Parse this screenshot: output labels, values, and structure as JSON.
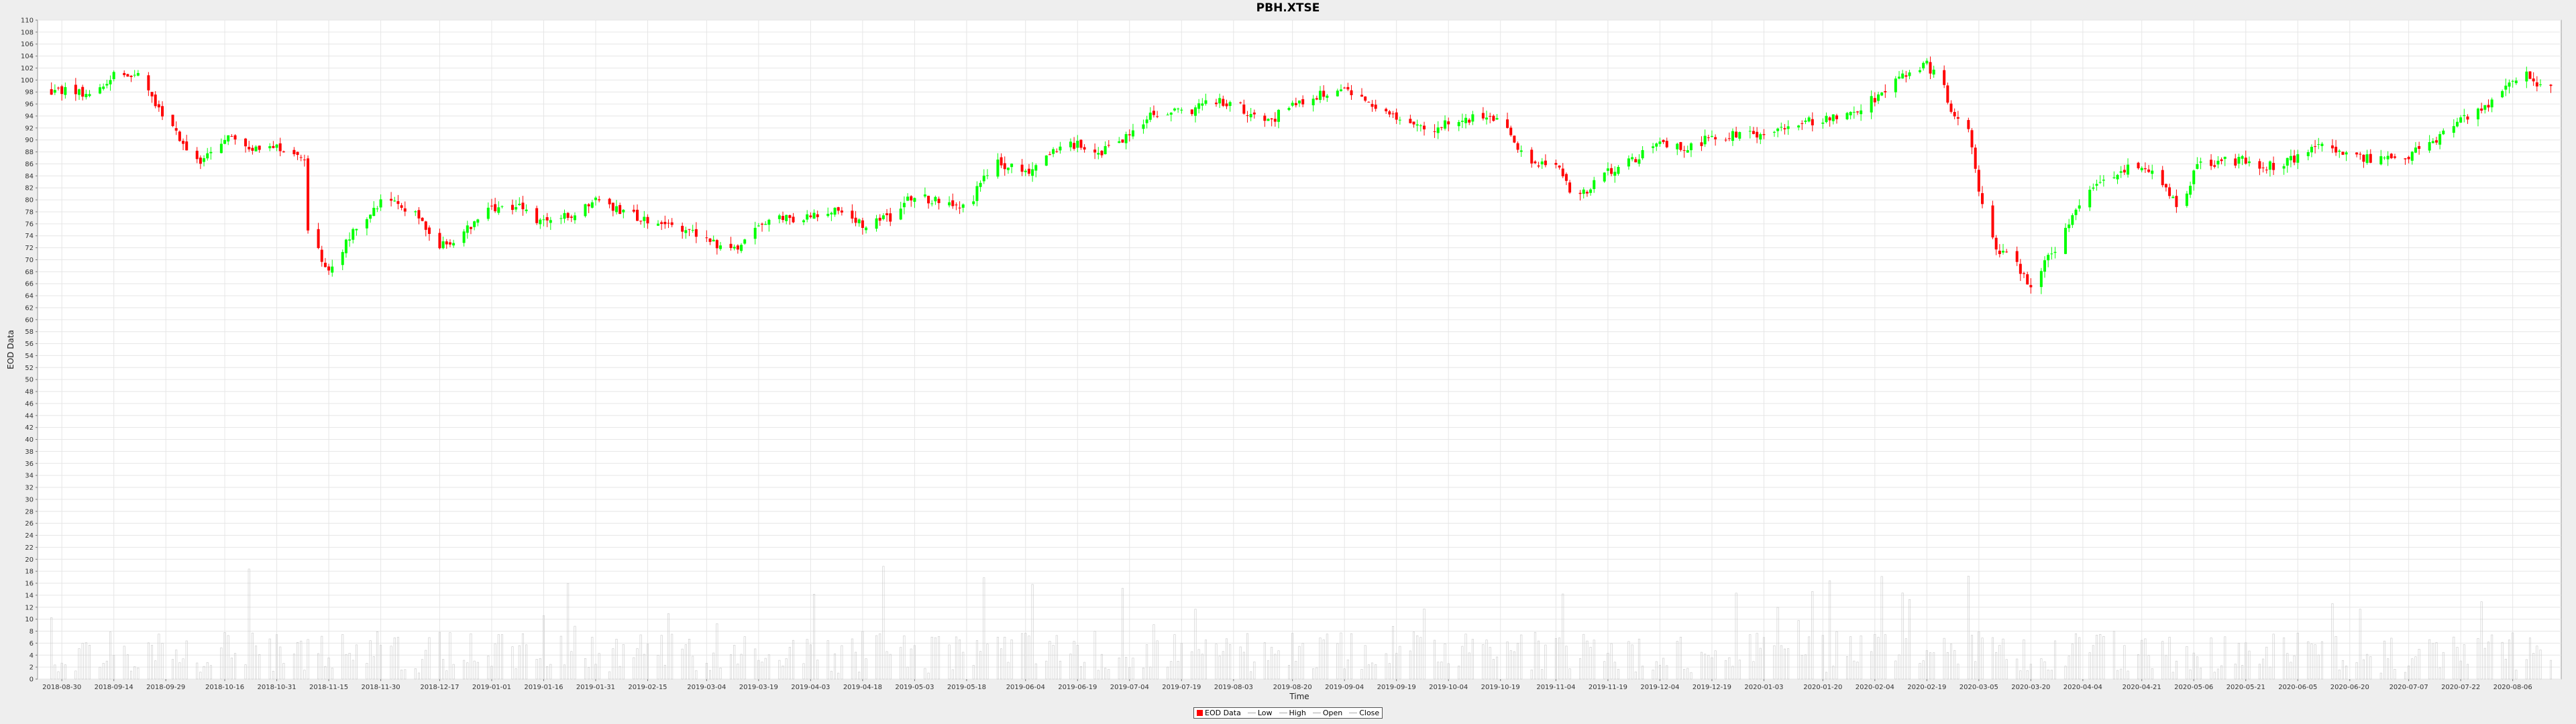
{
  "chart_data": {
    "type": "candlestick",
    "title": "PBH.XTSE",
    "xlabel": "Time",
    "ylabel": "EOD Data",
    "ylim": [
      0,
      110
    ],
    "ytick_step": 2,
    "grid": true,
    "legend_position": "bottom-center",
    "legend": [
      "EOD Data",
      "Low",
      "High",
      "Open",
      "Close"
    ],
    "colors": {
      "up": "#00ff00",
      "down": "#ff0000",
      "volume": "#c8c8c8",
      "grid": "#e6e6e6"
    },
    "x_ticks": [
      "2018-08-30",
      "2018-09-14",
      "2018-09-29",
      "2018-10-16",
      "2018-10-31",
      "2018-11-15",
      "2018-11-30",
      "2018-12-17",
      "2019-01-01",
      "2019-01-16",
      "2019-01-31",
      "2019-02-15",
      "2019-03-04",
      "2019-03-19",
      "2019-04-03",
      "2019-04-18",
      "2019-05-03",
      "2019-05-18",
      "2019-06-04",
      "2019-06-19",
      "2019-07-04",
      "2019-07-19",
      "2019-08-03",
      "2019-08-20",
      "2019-09-04",
      "2019-09-19",
      "2019-10-04",
      "2019-10-19",
      "2019-11-04",
      "2019-11-19",
      "2019-12-04",
      "2019-12-19",
      "2020-01-03",
      "2020-01-20",
      "2020-02-04",
      "2020-02-19",
      "2020-03-05",
      "2020-03-20",
      "2020-04-04",
      "2020-04-21",
      "2020-05-06",
      "2020-05-21",
      "2020-06-05",
      "2020-06-20",
      "2020-07-07",
      "2020-07-22",
      "2020-08-06"
    ],
    "price_series": [
      {
        "date": "2018-08-30",
        "close": 98.2
      },
      {
        "date": "2018-09-07",
        "close": 97.6
      },
      {
        "date": "2018-09-14",
        "close": 101.0
      },
      {
        "date": "2018-09-21",
        "close": 100.4
      },
      {
        "date": "2018-09-29",
        "close": 93.5
      },
      {
        "date": "2018-10-09",
        "close": 85.8
      },
      {
        "date": "2018-10-16",
        "close": 90.5
      },
      {
        "date": "2018-10-24",
        "close": 88.6
      },
      {
        "date": "2018-10-31",
        "close": 89.2
      },
      {
        "date": "2018-11-08",
        "close": 86.0
      },
      {
        "date": "2018-11-09",
        "close": 74.5
      },
      {
        "date": "2018-11-15",
        "close": 68.0
      },
      {
        "date": "2018-11-22",
        "close": 75.0
      },
      {
        "date": "2018-11-30",
        "close": 79.5
      },
      {
        "date": "2018-12-10",
        "close": 78.5
      },
      {
        "date": "2018-12-17",
        "close": 72.0
      },
      {
        "date": "2018-12-24",
        "close": 74.5
      },
      {
        "date": "2019-01-01",
        "close": 78.5
      },
      {
        "date": "2019-01-08",
        "close": 79.2
      },
      {
        "date": "2019-01-16",
        "close": 76.0
      },
      {
        "date": "2019-01-24",
        "close": 77.5
      },
      {
        "date": "2019-01-31",
        "close": 79.8
      },
      {
        "date": "2019-02-08",
        "close": 78.0
      },
      {
        "date": "2019-02-15",
        "close": 76.5
      },
      {
        "date": "2019-02-22",
        "close": 75.8
      },
      {
        "date": "2019-03-04",
        "close": 73.5
      },
      {
        "date": "2019-03-11",
        "close": 71.5
      },
      {
        "date": "2019-03-19",
        "close": 75.5
      },
      {
        "date": "2019-03-27",
        "close": 77.0
      },
      {
        "date": "2019-04-03",
        "close": 77.0
      },
      {
        "date": "2019-04-11",
        "close": 78.5
      },
      {
        "date": "2019-04-18",
        "close": 75.5
      },
      {
        "date": "2019-04-26",
        "close": 77.0
      },
      {
        "date": "2019-05-03",
        "close": 81.0
      },
      {
        "date": "2019-05-10",
        "close": 79.5
      },
      {
        "date": "2019-05-18",
        "close": 78.5
      },
      {
        "date": "2019-05-26",
        "close": 86.5
      },
      {
        "date": "2019-06-04",
        "close": 84.5
      },
      {
        "date": "2019-06-11",
        "close": 87.5
      },
      {
        "date": "2019-06-19",
        "close": 89.5
      },
      {
        "date": "2019-06-26",
        "close": 88.0
      },
      {
        "date": "2019-07-04",
        "close": 91.0
      },
      {
        "date": "2019-07-11",
        "close": 94.5
      },
      {
        "date": "2019-07-19",
        "close": 94.5
      },
      {
        "date": "2019-07-27",
        "close": 96.0
      },
      {
        "date": "2019-08-03",
        "close": 96.5
      },
      {
        "date": "2019-08-12",
        "close": 92.5
      },
      {
        "date": "2019-08-20",
        "close": 96.0
      },
      {
        "date": "2019-08-28",
        "close": 97.5
      },
      {
        "date": "2019-09-04",
        "close": 98.0
      },
      {
        "date": "2019-09-12",
        "close": 95.5
      },
      {
        "date": "2019-09-19",
        "close": 94.0
      },
      {
        "date": "2019-09-27",
        "close": 91.5
      },
      {
        "date": "2019-10-04",
        "close": 93.0
      },
      {
        "date": "2019-10-11",
        "close": 93.5
      },
      {
        "date": "2019-10-19",
        "close": 93.0
      },
      {
        "date": "2019-10-27",
        "close": 86.5
      },
      {
        "date": "2019-11-04",
        "close": 86.0
      },
      {
        "date": "2019-11-09",
        "close": 80.0
      },
      {
        "date": "2019-11-19",
        "close": 84.5
      },
      {
        "date": "2019-11-27",
        "close": 87.0
      },
      {
        "date": "2019-12-04",
        "close": 89.5
      },
      {
        "date": "2019-12-11",
        "close": 88.5
      },
      {
        "date": "2019-12-19",
        "close": 90.5
      },
      {
        "date": "2019-12-27",
        "close": 91.0
      },
      {
        "date": "2020-01-03",
        "close": 90.5
      },
      {
        "date": "2020-01-11",
        "close": 92.5
      },
      {
        "date": "2020-01-20",
        "close": 93.5
      },
      {
        "date": "2020-01-28",
        "close": 94.0
      },
      {
        "date": "2020-02-04",
        "close": 97.0
      },
      {
        "date": "2020-02-12",
        "close": 100.5
      },
      {
        "date": "2020-02-19",
        "close": 102.5
      },
      {
        "date": "2020-02-23",
        "close": 100.0
      },
      {
        "date": "2020-02-27",
        "close": 93.5
      },
      {
        "date": "2020-03-01",
        "close": 94.5
      },
      {
        "date": "2020-03-05",
        "close": 82.0
      },
      {
        "date": "2020-03-10",
        "close": 72.0
      },
      {
        "date": "2020-03-14",
        "close": 71.0
      },
      {
        "date": "2020-03-20",
        "close": 65.0
      },
      {
        "date": "2020-03-24",
        "close": 70.0
      },
      {
        "date": "2020-03-28",
        "close": 72.5
      },
      {
        "date": "2020-04-04",
        "close": 81.0
      },
      {
        "date": "2020-04-12",
        "close": 84.0
      },
      {
        "date": "2020-04-21",
        "close": 86.0
      },
      {
        "date": "2020-04-29",
        "close": 81.0
      },
      {
        "date": "2020-05-03",
        "close": 78.0
      },
      {
        "date": "2020-05-06",
        "close": 85.5
      },
      {
        "date": "2020-05-14",
        "close": 86.5
      },
      {
        "date": "2020-05-21",
        "close": 86.5
      },
      {
        "date": "2020-05-29",
        "close": 85.5
      },
      {
        "date": "2020-06-05",
        "close": 87.0
      },
      {
        "date": "2020-06-12",
        "close": 89.0
      },
      {
        "date": "2020-06-20",
        "close": 87.5
      },
      {
        "date": "2020-06-28",
        "close": 86.5
      },
      {
        "date": "2020-07-07",
        "close": 87.5
      },
      {
        "date": "2020-07-15",
        "close": 90.0
      },
      {
        "date": "2020-07-22",
        "close": 93.0
      },
      {
        "date": "2020-07-30",
        "close": 96.0
      },
      {
        "date": "2020-08-06",
        "close": 99.5
      },
      {
        "date": "2020-08-10",
        "close": 101.0
      },
      {
        "date": "2020-08-14",
        "close": 98.5
      }
    ]
  }
}
